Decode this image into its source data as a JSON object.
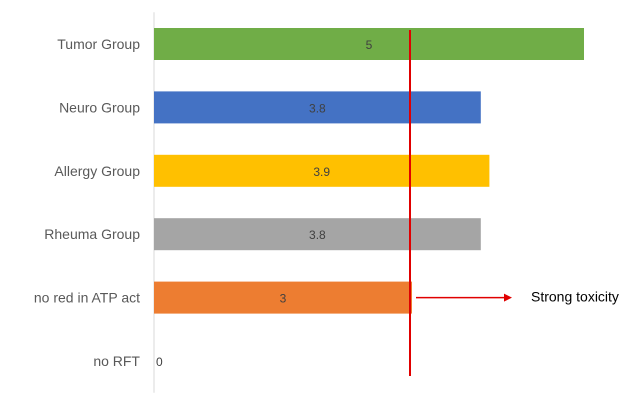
{
  "chart_data": {
    "type": "bar",
    "orientation": "horizontal",
    "title": "",
    "xlabel": "",
    "ylabel": "",
    "categories": [
      "Tumor Group",
      "Neuro Group",
      "Allergy Group",
      "Rheuma Group",
      "no red in ATP act",
      "no RFT"
    ],
    "values": [
      5,
      3.8,
      3.9,
      3.8,
      3,
      0
    ],
    "value_labels": [
      "5",
      "3.8",
      "3.9",
      "3.8",
      "3",
      "0"
    ],
    "colors": [
      "#70ad47",
      "#4472c4",
      "#ffc000",
      "#a5a5a5",
      "#ed7d31",
      "#a5a5a5"
    ],
    "xlim": [
      0,
      5
    ],
    "grid": false,
    "legend": "none",
    "reference_line": {
      "value": 3,
      "color": "#e00000"
    },
    "annotation": {
      "text": "Strong toxicity",
      "category": "no red in ATP act",
      "color": "#e00000"
    }
  }
}
